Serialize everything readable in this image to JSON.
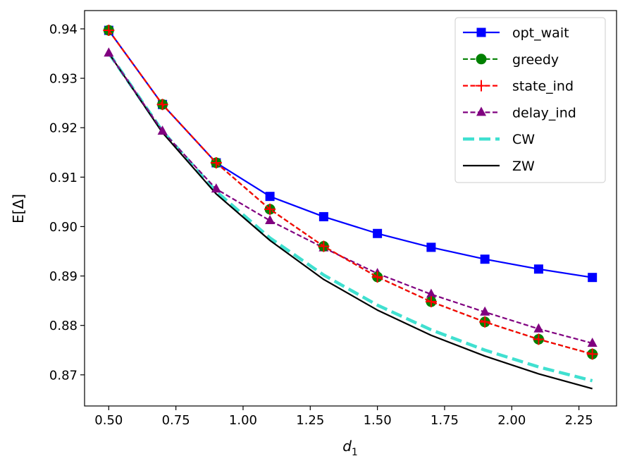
{
  "chart_data": {
    "type": "line",
    "title": "",
    "xlabel": "d",
    "xlabel_subscript": "1",
    "ylabel": "E[Δ]",
    "xlim": [
      0.41,
      2.39
    ],
    "ylim": [
      0.8637,
      0.9437
    ],
    "xticks": [
      0.5,
      0.75,
      1.0,
      1.25,
      1.5,
      1.75,
      2.0,
      2.25
    ],
    "xtick_labels": [
      "0.50",
      "0.75",
      "1.00",
      "1.25",
      "1.50",
      "1.75",
      "2.00",
      "2.25"
    ],
    "yticks": [
      0.87,
      0.88,
      0.89,
      0.9,
      0.91,
      0.92,
      0.93,
      0.94
    ],
    "ytick_labels": [
      "0.87",
      "0.88",
      "0.89",
      "0.90",
      "0.91",
      "0.92",
      "0.93",
      "0.94"
    ],
    "grid": false,
    "legend_position": "top-right",
    "x": [
      0.5,
      0.7,
      0.9,
      1.1,
      1.3,
      1.5,
      1.7,
      1.9,
      2.1,
      2.3
    ],
    "series": [
      {
        "name": "opt_wait",
        "color": "#0000ff",
        "dash": "solid",
        "marker": "square",
        "values": [
          0.9397,
          0.9247,
          0.9129,
          0.9061,
          0.902,
          0.8986,
          0.8958,
          0.8934,
          0.8914,
          0.8897
        ]
      },
      {
        "name": "greedy",
        "color": "#008000",
        "dash": "dashed",
        "marker": "circle",
        "values": [
          0.9397,
          0.9247,
          0.9129,
          0.9035,
          0.896,
          0.8898,
          0.8848,
          0.8807,
          0.8772,
          0.8742
        ]
      },
      {
        "name": "state_ind",
        "color": "#ff0000",
        "dash": "dashed",
        "marker": "plus",
        "values": [
          0.9397,
          0.9247,
          0.9129,
          0.9035,
          0.896,
          0.8898,
          0.8848,
          0.8807,
          0.8772,
          0.8742
        ]
      },
      {
        "name": "delay_ind",
        "color": "#800080",
        "dash": "dashed",
        "marker": "triangle",
        "values": [
          0.9351,
          0.9193,
          0.9076,
          0.9012,
          0.8957,
          0.8905,
          0.8863,
          0.8827,
          0.8793,
          0.8764
        ]
      },
      {
        "name": "CW",
        "color": "#40e0d0",
        "dash": "thickdash",
        "marker": "none",
        "values": [
          0.9351,
          0.9193,
          0.9071,
          0.8977,
          0.8902,
          0.8841,
          0.8791,
          0.875,
          0.8716,
          0.8688
        ]
      },
      {
        "name": "ZW",
        "color": "#000000",
        "dash": "solid",
        "marker": "none",
        "values": [
          0.9351,
          0.919,
          0.9066,
          0.8972,
          0.8893,
          0.8831,
          0.878,
          0.8738,
          0.8702,
          0.8672
        ]
      }
    ]
  }
}
